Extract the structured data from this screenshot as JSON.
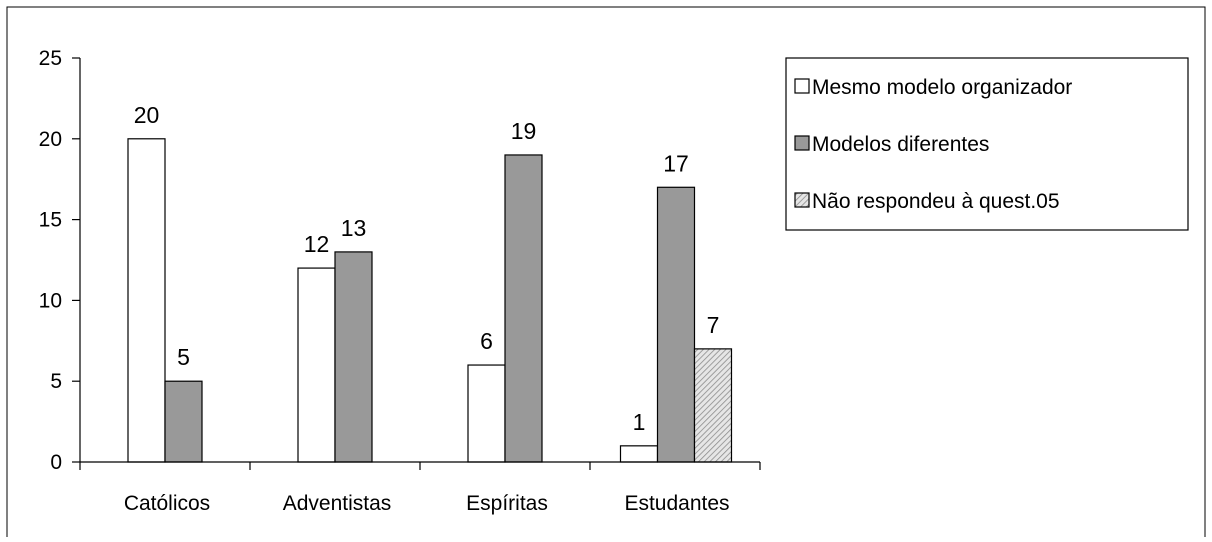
{
  "chart_data": {
    "type": "bar",
    "categories": [
      "Católicos",
      "Adventistas",
      "Espíritas",
      "Estudantes"
    ],
    "series": [
      {
        "name": "Mesmo modelo organizador",
        "values": [
          20,
          12,
          6,
          1
        ],
        "color": "#ffffff"
      },
      {
        "name": "Modelos diferentes",
        "values": [
          5,
          13,
          19,
          17
        ],
        "color": "#999999"
      },
      {
        "name": "Não respondeu à quest.05",
        "values": [
          null,
          null,
          null,
          7
        ],
        "color": "#c8c8c8",
        "pattern": "diagonal-hatch"
      }
    ],
    "ylim": [
      0,
      25
    ],
    "yticks": [
      0,
      5,
      10,
      15,
      20,
      25
    ],
    "grid": false,
    "legend_position": "top-right"
  }
}
